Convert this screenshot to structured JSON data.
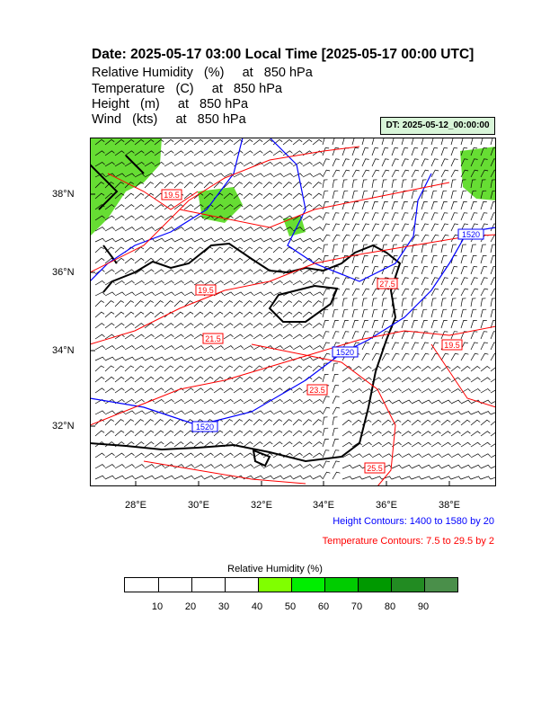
{
  "header": {
    "title": "Date: 2025-05-17  03:00 Local Time [2025-05-17  00:00 UTC]",
    "variables": [
      "Relative Humidity   (%)     at   850 hPa",
      "Temperature   (C)     at   850 hPa",
      "Height   (m)     at   850 hPa",
      "Wind   (kts)     at   850 hPa"
    ],
    "dt_badge": "DT: 2025-05-12_00:00:00"
  },
  "map": {
    "lon_labels": [
      "28°E",
      "30°E",
      "32°E",
      "34°E",
      "36°E",
      "38°E"
    ],
    "lat_labels": [
      "38°N",
      "36°N",
      "34°N",
      "32°N"
    ],
    "height_contour_labels": [
      "1520",
      "1520",
      "1520"
    ],
    "temperature_contour_labels": [
      "19.5",
      "19.5",
      "21.5",
      "23.5",
      "25.5",
      "19.5",
      "27.5"
    ],
    "colors": {
      "height": "#0000ff",
      "temperature": "#ff0000",
      "coast": "#000000",
      "humidity_shade": "#66dd33"
    }
  },
  "notes": {
    "height_contours": "Height Contours: 1400 to 1580 by 20",
    "temperature_contours": "Temperature Contours: 7.5 to 29.5 by 2"
  },
  "colorbar": {
    "title": "Relative Humidity  (%)",
    "labels": [
      "10",
      "20",
      "30",
      "40",
      "50",
      "60",
      "70",
      "80",
      "90"
    ],
    "colors": [
      "#ffffff",
      "#ffffff",
      "#ffffff",
      "#ffffff",
      "#80ff00",
      "#00ee00",
      "#00cc00",
      "#009900",
      "#228b22",
      "#4a8f4a"
    ]
  }
}
